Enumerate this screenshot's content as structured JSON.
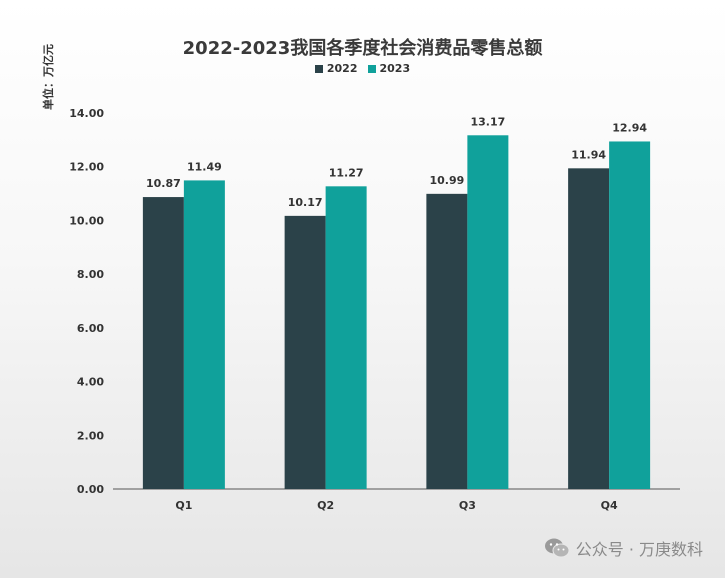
{
  "chart_data": {
    "type": "bar",
    "title": "2022-2023我国各季度社会消费品零售总额",
    "unit_label": "单位：万亿元",
    "categories": [
      "Q1",
      "Q2",
      "Q3",
      "Q4"
    ],
    "series": [
      {
        "name": "2022",
        "values": [
          10.87,
          10.17,
          10.99,
          11.94
        ],
        "color": "#2b4249"
      },
      {
        "name": "2023",
        "values": [
          11.49,
          11.27,
          13.17,
          12.94
        ],
        "color": "#10a19b"
      }
    ],
    "ylim": [
      0,
      14
    ],
    "yticks": [
      "0.00",
      "2.00",
      "4.00",
      "6.00",
      "8.00",
      "10.00",
      "12.00",
      "14.00"
    ],
    "legend_position": "top-center",
    "grid": false
  },
  "watermark": {
    "icon": "wechat-icon",
    "text": "公众号 · 万庚数科"
  }
}
